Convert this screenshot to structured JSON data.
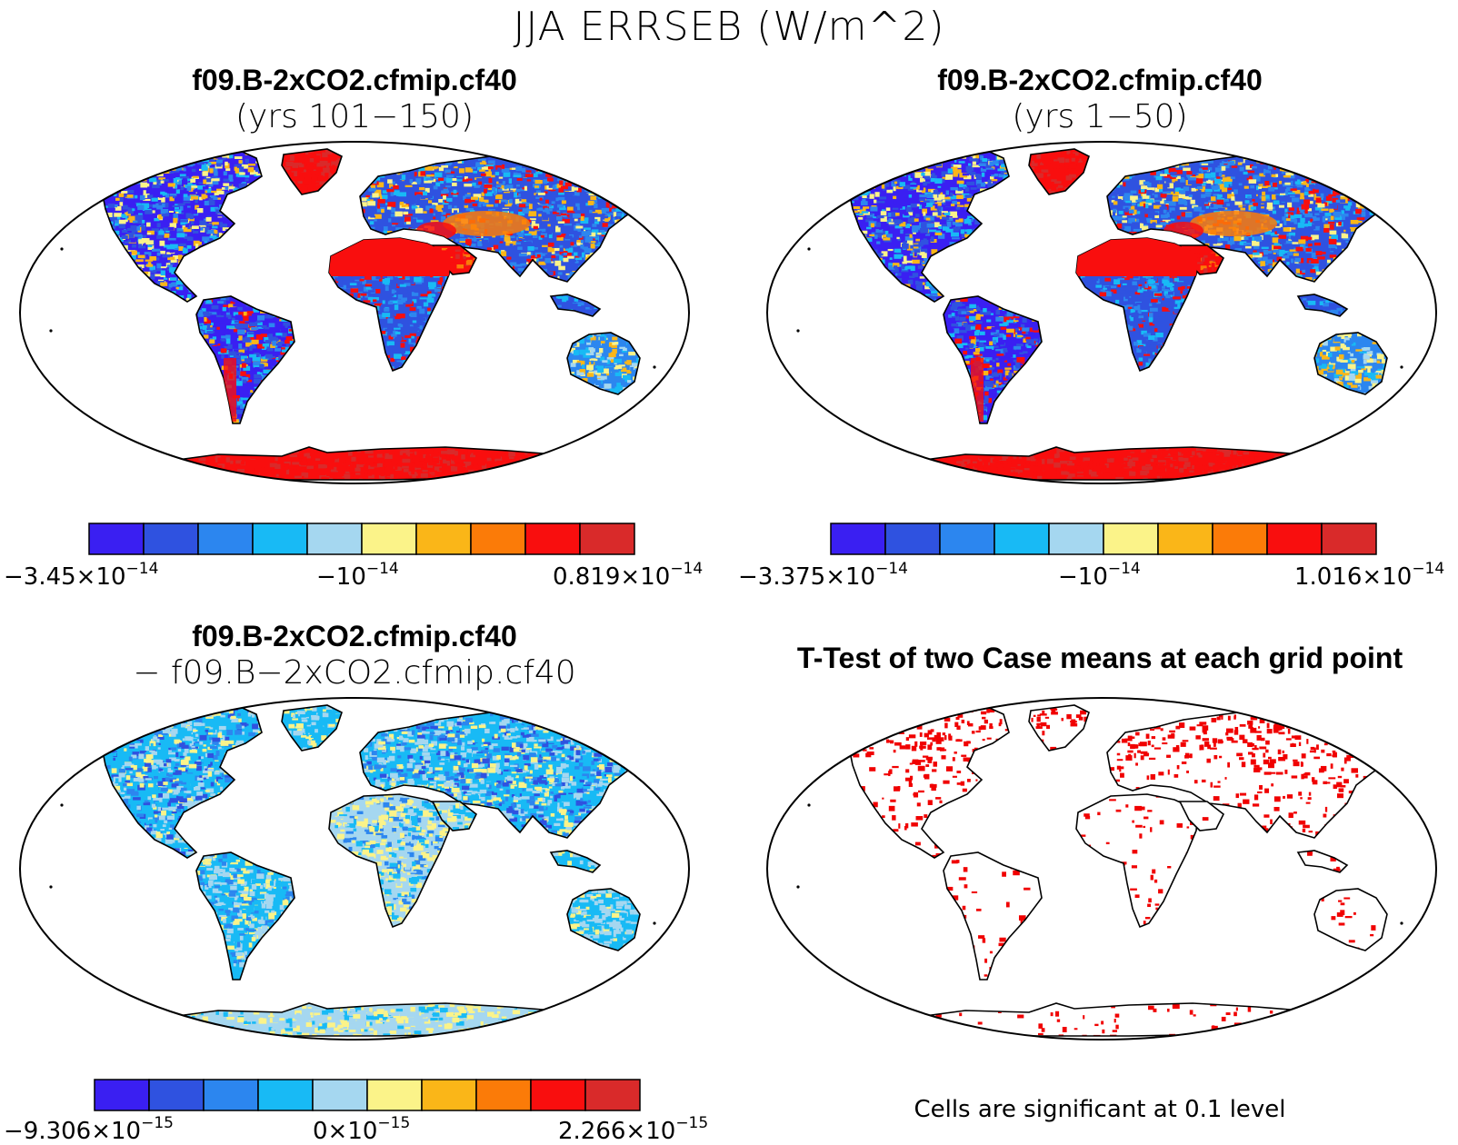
{
  "title": "JJA ERRSEB (W/m^2)",
  "colors": {
    "scale": [
      "#3a1ff2",
      "#2f52e0",
      "#2c86ef",
      "#18baf5",
      "#a5d7f0",
      "#fbf389",
      "#fab618",
      "#fb7b08",
      "#f90e0e",
      "#d92a2a"
    ],
    "outline": "#000000",
    "significant": "#f00000"
  },
  "chart_data": [
    {
      "type": "heatmap",
      "title": "f09.B-2xCO2.cfmip.cf40",
      "subtitle": "(yrs 101−150)",
      "field": "ERRSEB",
      "projection": "robinson",
      "colorbar": {
        "min_label": {
          "mantissa": "−3.45×10",
          "exp": "−14"
        },
        "mid_label": {
          "mantissa": "−10",
          "exp": "−14"
        },
        "max_label": {
          "mantissa": "0.819×10",
          "exp": "−14"
        },
        "min": -3.45e-14,
        "max": 8.19e-15,
        "levels": 10
      }
    },
    {
      "type": "heatmap",
      "title": "f09.B-2xCO2.cfmip.cf40",
      "subtitle": "(yrs 1−50)",
      "field": "ERRSEB",
      "projection": "robinson",
      "colorbar": {
        "min_label": {
          "mantissa": "−3.375×10",
          "exp": "−14"
        },
        "mid_label": {
          "mantissa": "−10",
          "exp": "−14"
        },
        "max_label": {
          "mantissa": "1.016×10",
          "exp": "−14"
        },
        "min": -3.375e-14,
        "max": 1.016e-14,
        "levels": 10
      }
    },
    {
      "type": "heatmap",
      "title": "f09.B-2xCO2.cfmip.cf40",
      "subtitle": "− f09.B−2xCO2.cfmip.cf40",
      "field": "ERRSEB difference",
      "projection": "robinson",
      "colorbar": {
        "min_label": {
          "mantissa": "−9.306×10",
          "exp": "−15"
        },
        "mid_label": {
          "mantissa": "0×10",
          "exp": "−15"
        },
        "max_label": {
          "mantissa": "2.266×10",
          "exp": "−15"
        },
        "min": -9.306e-15,
        "max": 2.266e-15,
        "levels": 10
      }
    },
    {
      "type": "heatmap",
      "title": "T-Test of two Case means at each grid point",
      "note": "Cells are significant at 0.1 level",
      "projection": "robinson",
      "significance_level": 0.1
    }
  ]
}
